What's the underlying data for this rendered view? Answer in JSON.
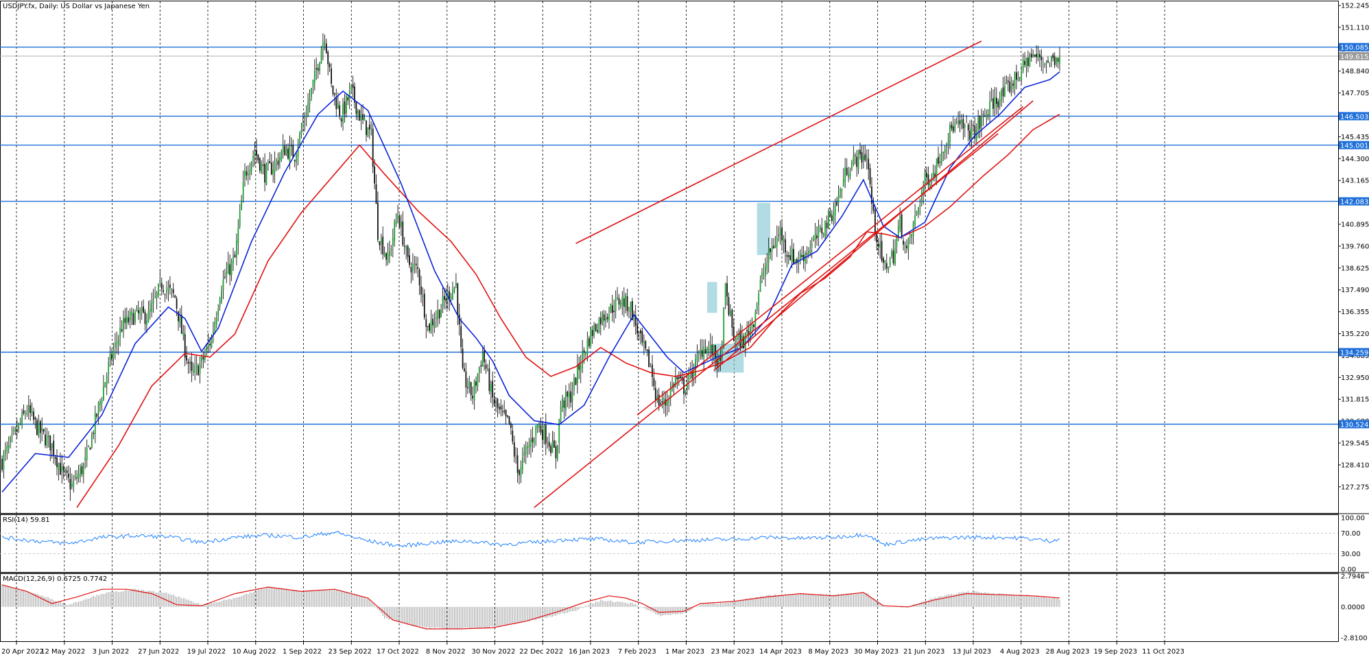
{
  "main": {
    "title": "USDJPY.fx, Daily:  US Dollar vs Japanese Yen"
  },
  "rsi": {
    "label": "RSI(14) 59.81",
    "levels": [
      100,
      70,
      30,
      0
    ],
    "level_labels": [
      "100.00",
      "70.00",
      "30.00",
      "0.00"
    ]
  },
  "macd": {
    "label": "MACD(12,26,9) 0.6725 0.7742",
    "tick_labels": [
      "2.7946",
      "0.0000",
      "-2.8100"
    ]
  },
  "chart_data": [
    {
      "type": "candlestick",
      "name": "USDJPY.fx",
      "y_ticks": [
        "152.245",
        "151.110",
        "149.980",
        "148.840",
        "147.705",
        "146.570",
        "145.435",
        "144.300",
        "143.165",
        "142.030",
        "140.895",
        "139.760",
        "138.625",
        "137.490",
        "136.355",
        "135.220",
        "134.085",
        "132.950",
        "131.815",
        "130.680",
        "129.545",
        "128.410",
        "127.275"
      ],
      "ylim": [
        126.2,
        152.245
      ],
      "x_tick_labels": [
        "20 Apr 2022",
        "12 May 2022",
        "3 Jun 2022",
        "27 Jun 2022",
        "19 Jul 2022",
        "10 Aug 2022",
        "1 Sep 2022",
        "23 Sep 2022",
        "17 Oct 2022",
        "8 Nov 2022",
        "30 Nov 2022",
        "22 Dec 2022",
        "16 Jan 2023",
        "7 Feb 2023",
        "1 Mar 2023",
        "23 Mar 2023",
        "14 Apr 2023",
        "8 May 2023",
        "30 May 2023",
        "21 Jun 2023",
        "13 Jul 2023",
        "4 Aug 2023",
        "28 Aug 2023",
        "19 Sep 2023",
        "11 Oct 2023"
      ],
      "close_path": [
        [
          0,
          128.6
        ],
        [
          8,
          130.0
        ],
        [
          15,
          131.3
        ],
        [
          22,
          130.2
        ],
        [
          30,
          129.4
        ],
        [
          36,
          128.0
        ],
        [
          42,
          127.3
        ],
        [
          50,
          128.5
        ],
        [
          57,
          131.0
        ],
        [
          64,
          133.5
        ],
        [
          72,
          135.6
        ],
        [
          80,
          136.2
        ],
        [
          88,
          136.1
        ],
        [
          96,
          137.8
        ],
        [
          104,
          137.1
        ],
        [
          110,
          134.4
        ],
        [
          114,
          133.0
        ],
        [
          120,
          133.7
        ],
        [
          126,
          135.0
        ],
        [
          132,
          137.8
        ],
        [
          140,
          139.1
        ],
        [
          146,
          143.5
        ],
        [
          152,
          144.7
        ],
        [
          158,
          143.5
        ],
        [
          164,
          144.0
        ],
        [
          170,
          144.8
        ],
        [
          176,
          144.5
        ],
        [
          182,
          146.4
        ],
        [
          188,
          148.5
        ],
        [
          194,
          150.8
        ],
        [
          198,
          148.0
        ],
        [
          204,
          146.5
        ],
        [
          210,
          147.8
        ],
        [
          216,
          146.3
        ],
        [
          222,
          145.5
        ],
        [
          226,
          140.5
        ],
        [
          232,
          139.0
        ],
        [
          238,
          141.5
        ],
        [
          244,
          138.9
        ],
        [
          250,
          138.5
        ],
        [
          256,
          135.5
        ],
        [
          262,
          136.3
        ],
        [
          268,
          137.2
        ],
        [
          273,
          137.8
        ],
        [
          277,
          133.0
        ],
        [
          283,
          132.0
        ],
        [
          289,
          134.2
        ],
        [
          295,
          131.8
        ],
        [
          300,
          131.0
        ],
        [
          305,
          130.5
        ],
        [
          310,
          128.0
        ],
        [
          316,
          129.2
        ],
        [
          322,
          130.5
        ],
        [
          328,
          129.8
        ],
        [
          333,
          128.9
        ],
        [
          336,
          131.5
        ],
        [
          342,
          132.0
        ],
        [
          348,
          133.8
        ],
        [
          354,
          135.2
        ],
        [
          360,
          136.0
        ],
        [
          366,
          136.5
        ],
        [
          372,
          137.0
        ],
        [
          378,
          136.6
        ],
        [
          384,
          134.8
        ],
        [
          390,
          133.5
        ],
        [
          394,
          131.7
        ],
        [
          399,
          131.6
        ],
        [
          405,
          132.9
        ],
        [
          410,
          132.4
        ],
        [
          416,
          133.4
        ],
        [
          422,
          134.6
        ],
        [
          428,
          134.2
        ],
        [
          432,
          133.5
        ],
        [
          435,
          137.5
        ],
        [
          440,
          135.0
        ],
        [
          446,
          134.8
        ],
        [
          452,
          136.0
        ],
        [
          456,
          137.8
        ],
        [
          462,
          139.5
        ],
        [
          468,
          140.5
        ],
        [
          472,
          139.5
        ],
        [
          478,
          139.0
        ],
        [
          484,
          139.5
        ],
        [
          490,
          140.2
        ],
        [
          496,
          141.0
        ],
        [
          502,
          142.0
        ],
        [
          508,
          143.8
        ],
        [
          514,
          144.3
        ],
        [
          520,
          144.5
        ],
        [
          524,
          141.2
        ],
        [
          530,
          138.6
        ],
        [
          536,
          139.3
        ],
        [
          540,
          141.0
        ],
        [
          544,
          139.4
        ],
        [
          550,
          141.5
        ],
        [
          555,
          143.2
        ],
        [
          560,
          143.5
        ],
        [
          566,
          145.0
        ],
        [
          572,
          146.0
        ],
        [
          578,
          145.9
        ],
        [
          584,
          145.6
        ],
        [
          590,
          146.4
        ],
        [
          596,
          147.2
        ],
        [
          602,
          147.6
        ],
        [
          608,
          148.3
        ],
        [
          614,
          149.0
        ],
        [
          618,
          149.6
        ],
        [
          624,
          149.5
        ],
        [
          630,
          149.3
        ],
        [
          636,
          149.8
        ]
      ],
      "ma_blue_path": [
        [
          0,
          127.0
        ],
        [
          20,
          129.0
        ],
        [
          40,
          128.8
        ],
        [
          60,
          131.0
        ],
        [
          80,
          134.7
        ],
        [
          100,
          136.6
        ],
        [
          110,
          136.0
        ],
        [
          120,
          134.3
        ],
        [
          130,
          135.5
        ],
        [
          150,
          140.0
        ],
        [
          170,
          143.6
        ],
        [
          190,
          146.6
        ],
        [
          205,
          147.8
        ],
        [
          220,
          146.8
        ],
        [
          240,
          143.0
        ],
        [
          260,
          138.5
        ],
        [
          275,
          136.0
        ],
        [
          285,
          135.0
        ],
        [
          295,
          133.8
        ],
        [
          305,
          132.0
        ],
        [
          320,
          130.7
        ],
        [
          335,
          130.5
        ],
        [
          350,
          131.5
        ],
        [
          365,
          134.0
        ],
        [
          380,
          136.2
        ],
        [
          400,
          134.0
        ],
        [
          410,
          133.2
        ],
        [
          420,
          133.6
        ],
        [
          430,
          134.0
        ],
        [
          445,
          134.5
        ],
        [
          460,
          136.0
        ],
        [
          475,
          138.8
        ],
        [
          490,
          139.5
        ],
        [
          505,
          141.3
        ],
        [
          518,
          143.2
        ],
        [
          530,
          140.8
        ],
        [
          540,
          140.2
        ],
        [
          555,
          141.0
        ],
        [
          570,
          143.8
        ],
        [
          585,
          145.5
        ],
        [
          600,
          146.6
        ],
        [
          615,
          148.0
        ],
        [
          630,
          148.4
        ],
        [
          636,
          148.8
        ]
      ],
      "ma_red_path": [
        [
          45,
          126.2
        ],
        [
          70,
          129.4
        ],
        [
          90,
          132.5
        ],
        [
          110,
          134.2
        ],
        [
          125,
          134.0
        ],
        [
          140,
          135.2
        ],
        [
          160,
          139.0
        ],
        [
          180,
          141.5
        ],
        [
          200,
          143.5
        ],
        [
          215,
          145.0
        ],
        [
          230,
          143.5
        ],
        [
          250,
          141.6
        ],
        [
          270,
          140.0
        ],
        [
          285,
          138.3
        ],
        [
          300,
          136.0
        ],
        [
          315,
          134.0
        ],
        [
          330,
          133.0
        ],
        [
          345,
          133.5
        ],
        [
          360,
          134.5
        ],
        [
          375,
          133.7
        ],
        [
          390,
          133.2
        ],
        [
          405,
          133.0
        ],
        [
          420,
          133.3
        ],
        [
          435,
          133.8
        ],
        [
          450,
          134.5
        ],
        [
          465,
          136.0
        ],
        [
          480,
          137.3
        ],
        [
          495,
          138.1
        ],
        [
          510,
          139.2
        ],
        [
          520,
          140.5
        ],
        [
          530,
          140.4
        ],
        [
          540,
          140.2
        ],
        [
          555,
          140.8
        ],
        [
          570,
          141.8
        ],
        [
          590,
          143.4
        ],
        [
          605,
          144.5
        ],
        [
          620,
          145.8
        ],
        [
          636,
          146.6
        ]
      ],
      "channel_lines": [
        {
          "from": [
            320,
            126.2
          ],
          "to": [
            599,
            145.6
          ]
        },
        {
          "from": [
            345,
            139.9
          ],
          "to": [
            589,
            150.4
          ]
        },
        {
          "from": [
            382,
            131.0
          ],
          "to": [
            614,
            147.0
          ]
        },
        {
          "from": [
            428,
            133.3
          ],
          "to": [
            620,
            147.3
          ]
        }
      ],
      "horizontal_levels": [
        {
          "value": 150.085,
          "label": "150.085"
        },
        {
          "value": 146.503,
          "label": "146.503"
        },
        {
          "value": 145.001,
          "label": "145.001"
        },
        {
          "value": 142.083,
          "label": "142.083"
        },
        {
          "value": 134.259,
          "label": "134.259"
        },
        {
          "value": 130.524,
          "label": "130.524"
        }
      ],
      "current_price": {
        "value": 149.615,
        "label": "149.615"
      },
      "highlight_boxes": [
        {
          "x_range": [
            424,
            430
          ],
          "y_range": [
            136.3,
            137.9
          ]
        },
        {
          "x_range": [
            454,
            462
          ],
          "y_range": [
            139.3,
            142.0
          ]
        },
        {
          "x_range": [
            428,
            446
          ],
          "y_range": [
            133.2,
            134.7
          ]
        }
      ],
      "colors": {
        "candle_up": "#1f9e2f",
        "candle_down": "#111111",
        "ma_fast": "#0a23d8",
        "ma_slow": "#e01010",
        "level": "#1e6fd9",
        "channel": "#e01010"
      }
    },
    {
      "type": "line",
      "name": "RSI(14)",
      "ylim": [
        0,
        100
      ],
      "value_path": [
        [
          0,
          62
        ],
        [
          20,
          55
        ],
        [
          40,
          50
        ],
        [
          60,
          62
        ],
        [
          80,
          65
        ],
        [
          100,
          63
        ],
        [
          120,
          52
        ],
        [
          140,
          62
        ],
        [
          160,
          66
        ],
        [
          180,
          62
        ],
        [
          200,
          72
        ],
        [
          220,
          55
        ],
        [
          240,
          45
        ],
        [
          260,
          52
        ],
        [
          280,
          55
        ],
        [
          300,
          48
        ],
        [
          320,
          52
        ],
        [
          340,
          58
        ],
        [
          360,
          58
        ],
        [
          380,
          52
        ],
        [
          400,
          55
        ],
        [
          420,
          57
        ],
        [
          440,
          58
        ],
        [
          460,
          62
        ],
        [
          480,
          60
        ],
        [
          500,
          62
        ],
        [
          520,
          68
        ],
        [
          530,
          48
        ],
        [
          545,
          55
        ],
        [
          560,
          60
        ],
        [
          580,
          62
        ],
        [
          600,
          62
        ],
        [
          615,
          60
        ],
        [
          630,
          55
        ],
        [
          636,
          60
        ]
      ],
      "colors": {
        "line": "#1e80ff",
        "levels": "#c8c8c8"
      }
    },
    {
      "type": "bar+line",
      "name": "MACD(12,26,9)",
      "ylim": [
        -2.81,
        2.7946
      ],
      "histogram_path": [
        [
          0,
          2.0
        ],
        [
          20,
          1.2
        ],
        [
          40,
          0.2
        ],
        [
          60,
          1.2
        ],
        [
          80,
          1.6
        ],
        [
          100,
          1.2
        ],
        [
          120,
          0.2
        ],
        [
          140,
          0.8
        ],
        [
          160,
          1.8
        ],
        [
          180,
          1.4
        ],
        [
          200,
          1.6
        ],
        [
          220,
          0.8
        ],
        [
          230,
          -1.0
        ],
        [
          250,
          -1.8
        ],
        [
          270,
          -2.0
        ],
        [
          290,
          -1.9
        ],
        [
          310,
          -1.5
        ],
        [
          330,
          -0.9
        ],
        [
          345,
          -0.3
        ],
        [
          360,
          0.6
        ],
        [
          380,
          0.3
        ],
        [
          395,
          -0.8
        ],
        [
          410,
          -0.6
        ],
        [
          420,
          0.2
        ],
        [
          440,
          0.5
        ],
        [
          460,
          1.0
        ],
        [
          480,
          1.2
        ],
        [
          500,
          1.1
        ],
        [
          520,
          1.3
        ],
        [
          530,
          0.0
        ],
        [
          545,
          0.0
        ],
        [
          560,
          0.8
        ],
        [
          580,
          1.4
        ],
        [
          600,
          1.2
        ],
        [
          620,
          1.0
        ],
        [
          636,
          0.7
        ]
      ],
      "signal_path": [
        [
          0,
          2.0
        ],
        [
          15,
          1.4
        ],
        [
          30,
          0.3
        ],
        [
          45,
          0.9
        ],
        [
          60,
          1.6
        ],
        [
          75,
          1.6
        ],
        [
          90,
          1.2
        ],
        [
          105,
          0.2
        ],
        [
          120,
          0.1
        ],
        [
          140,
          1.2
        ],
        [
          160,
          1.8
        ],
        [
          180,
          1.4
        ],
        [
          200,
          1.6
        ],
        [
          220,
          0.8
        ],
        [
          235,
          -1.2
        ],
        [
          255,
          -2.0
        ],
        [
          275,
          -2.0
        ],
        [
          295,
          -1.9
        ],
        [
          315,
          -1.3
        ],
        [
          335,
          -0.4
        ],
        [
          350,
          0.4
        ],
        [
          365,
          1.0
        ],
        [
          375,
          0.8
        ],
        [
          385,
          0.3
        ],
        [
          395,
          -0.5
        ],
        [
          410,
          -0.4
        ],
        [
          420,
          0.3
        ],
        [
          440,
          0.5
        ],
        [
          460,
          0.9
        ],
        [
          480,
          1.2
        ],
        [
          500,
          1.0
        ],
        [
          518,
          1.3
        ],
        [
          530,
          0.1
        ],
        [
          545,
          0.0
        ],
        [
          560,
          0.6
        ],
        [
          580,
          1.2
        ],
        [
          600,
          1.1
        ],
        [
          620,
          1.0
        ],
        [
          636,
          0.8
        ]
      ],
      "colors": {
        "histogram": "#a8a8a8",
        "signal": "#e01010"
      }
    }
  ]
}
